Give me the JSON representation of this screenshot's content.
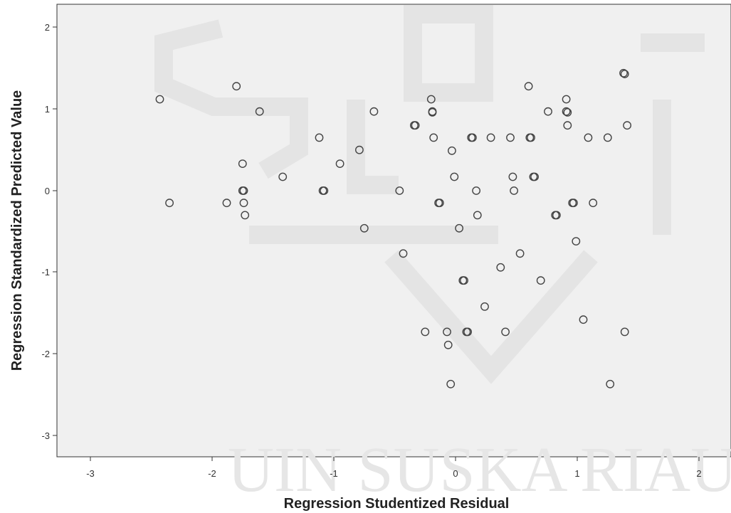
{
  "chart_data": {
    "type": "scatter",
    "xlabel": "Regression Studentized Residual",
    "ylabel": "Regression Standardized Predicted Value",
    "xlim": [
      -3.3,
      2.3
    ],
    "ylim": [
      -3.3,
      2.3
    ],
    "xticks": [
      "-3",
      "-2",
      "-1",
      "0",
      "1",
      "2"
    ],
    "yticks": [
      "2",
      "1",
      "0",
      "-1",
      "-2",
      "-3"
    ],
    "grid": false,
    "marker": "open-circle",
    "colors": {
      "plot_background": "#f0f0f0",
      "marker_edge": "#444444",
      "frame": "#333333"
    },
    "points": [
      [
        -2.43,
        1.12
      ],
      [
        -2.35,
        -0.15
      ],
      [
        -1.88,
        -0.15
      ],
      [
        -1.8,
        1.28
      ],
      [
        -1.75,
        0.33
      ],
      [
        -1.75,
        0.0
      ],
      [
        -1.74,
        0.0
      ],
      [
        -1.74,
        -0.15
      ],
      [
        -1.73,
        -0.3
      ],
      [
        -1.61,
        0.97
      ],
      [
        -1.42,
        0.17
      ],
      [
        -1.12,
        0.65
      ],
      [
        -1.09,
        0.0
      ],
      [
        -1.08,
        0.0
      ],
      [
        -0.95,
        0.33
      ],
      [
        -0.79,
        0.5
      ],
      [
        -0.75,
        -0.46
      ],
      [
        -0.67,
        0.97
      ],
      [
        -0.46,
        0.0
      ],
      [
        -0.43,
        -0.77
      ],
      [
        -0.34,
        0.8
      ],
      [
        -0.33,
        0.8
      ],
      [
        -0.25,
        -1.73
      ],
      [
        -0.2,
        1.12
      ],
      [
        -0.19,
        0.97
      ],
      [
        -0.19,
        0.96
      ],
      [
        -0.18,
        0.65
      ],
      [
        -0.14,
        -0.15
      ],
      [
        -0.13,
        -0.15
      ],
      [
        -0.07,
        -1.73
      ],
      [
        -0.06,
        -1.89
      ],
      [
        -0.04,
        -2.37
      ],
      [
        -0.03,
        0.49
      ],
      [
        -0.01,
        0.17
      ],
      [
        0.03,
        -0.46
      ],
      [
        0.06,
        -1.1
      ],
      [
        0.07,
        -1.1
      ],
      [
        0.09,
        -1.73
      ],
      [
        0.1,
        -1.73
      ],
      [
        0.13,
        0.65
      ],
      [
        0.14,
        0.65
      ],
      [
        0.17,
        0.0
      ],
      [
        0.18,
        -0.3
      ],
      [
        0.24,
        -1.42
      ],
      [
        0.29,
        0.65
      ],
      [
        0.37,
        -0.94
      ],
      [
        0.41,
        -1.73
      ],
      [
        0.45,
        0.65
      ],
      [
        0.47,
        0.17
      ],
      [
        0.48,
        0.0
      ],
      [
        0.53,
        -0.77
      ],
      [
        0.6,
        1.28
      ],
      [
        0.61,
        0.65
      ],
      [
        0.62,
        0.65
      ],
      [
        0.64,
        0.17
      ],
      [
        0.65,
        0.17
      ],
      [
        0.7,
        -1.1
      ],
      [
        0.76,
        0.97
      ],
      [
        0.82,
        -0.3
      ],
      [
        0.83,
        -0.3
      ],
      [
        0.91,
        1.12
      ],
      [
        0.91,
        0.97
      ],
      [
        0.92,
        0.96
      ],
      [
        0.92,
        0.8
      ],
      [
        0.96,
        -0.15
      ],
      [
        0.97,
        -0.15
      ],
      [
        0.99,
        -0.62
      ],
      [
        1.05,
        -1.58
      ],
      [
        1.09,
        0.65
      ],
      [
        1.13,
        -0.15
      ],
      [
        1.25,
        0.65
      ],
      [
        1.27,
        -2.37
      ],
      [
        1.38,
        1.44
      ],
      [
        1.39,
        1.43
      ],
      [
        1.39,
        -1.73
      ],
      [
        1.41,
        0.8
      ]
    ]
  }
}
